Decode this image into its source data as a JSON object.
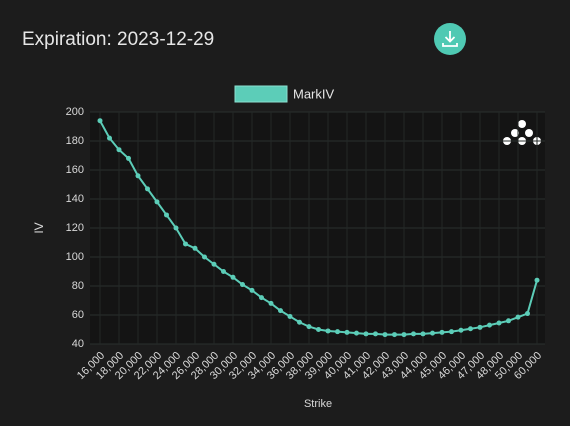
{
  "chart_data": {
    "type": "line",
    "title": "Expiration: 2023-12-29",
    "xlabel": "Strike",
    "ylabel": "IV",
    "categories": [
      "16,000",
      null,
      "18,000",
      null,
      "20,000",
      null,
      "22,000",
      null,
      "24,000",
      null,
      "26,000",
      null,
      "28,000",
      null,
      "30,000",
      null,
      "32,000",
      null,
      "34,000",
      null,
      "36,000",
      null,
      "38,000",
      null,
      "39,000",
      null,
      "40,000",
      null,
      "41,000",
      null,
      "42,000",
      null,
      "43,000",
      null,
      "44,000",
      null,
      "45,000",
      null,
      "46,000",
      null,
      "47,000",
      null,
      "48,000",
      null,
      "50,000",
      null,
      "60,000"
    ],
    "series": [
      {
        "name": "MarkIV",
        "color": "#5ccdb8",
        "values": [
          194,
          182,
          174,
          168,
          156,
          147,
          138,
          129,
          120,
          109,
          106,
          100,
          95,
          90,
          86,
          81,
          77,
          72,
          68,
          63,
          59,
          55,
          52,
          50,
          49,
          48.5,
          48,
          47.5,
          47,
          47,
          46.5,
          46.5,
          46.5,
          47,
          47,
          47.5,
          48,
          48.5,
          49.5,
          50.5,
          51.5,
          53,
          54.5,
          56,
          58.5,
          61,
          84
        ]
      }
    ],
    "ylim": [
      40,
      200
    ],
    "yticks": [
      40,
      60,
      80,
      100,
      120,
      140,
      160,
      180,
      200
    ],
    "grid": true
  }
}
